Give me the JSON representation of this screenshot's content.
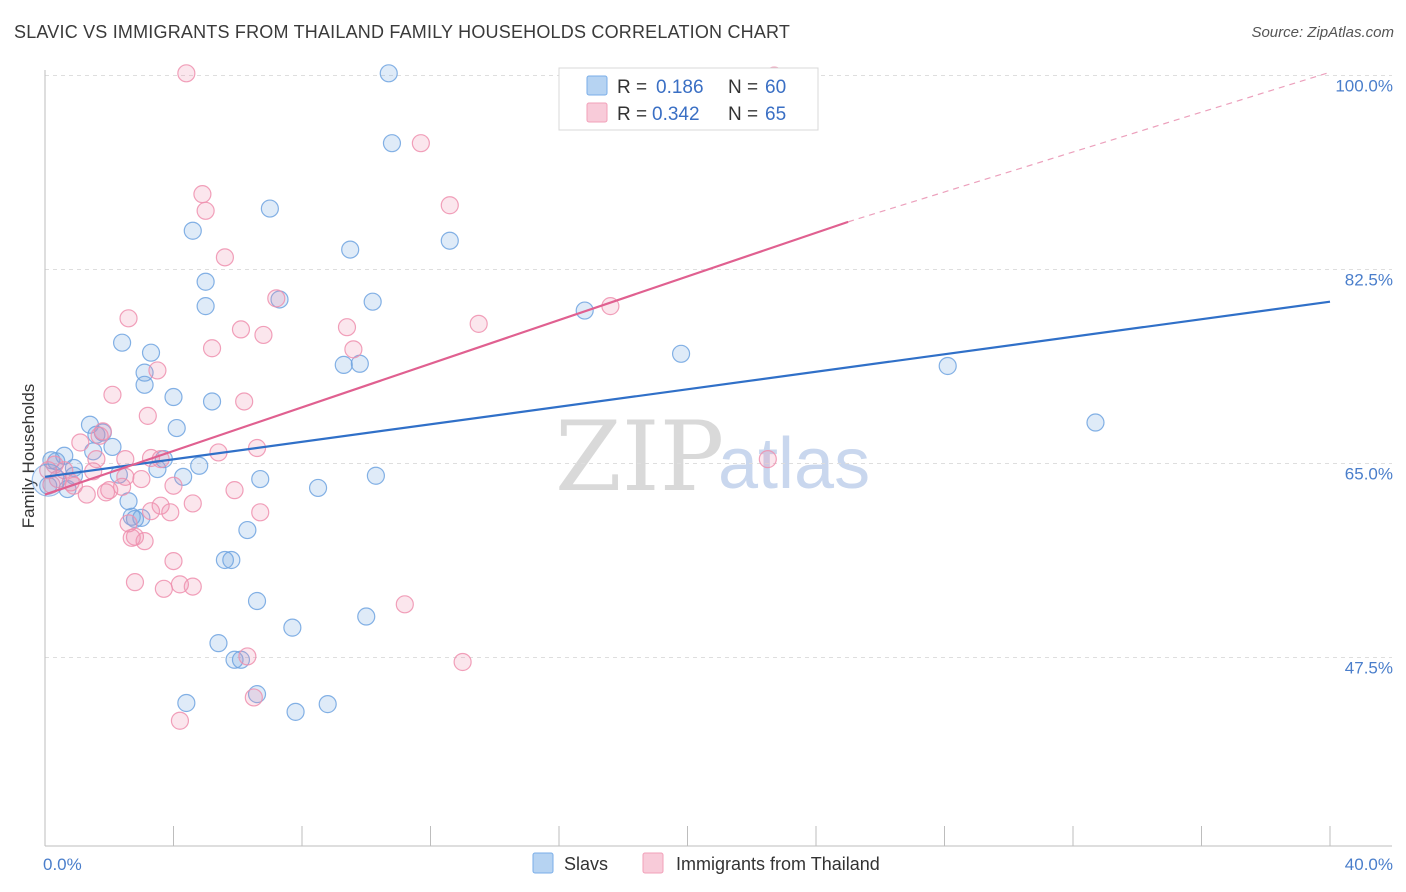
{
  "header": {
    "title": "SLAVIC VS IMMIGRANTS FROM THAILAND FAMILY HOUSEHOLDS CORRELATION CHART",
    "source": "Source: ZipAtlas.com"
  },
  "watermark": {
    "zip": "ZIP",
    "atlas": "atlas"
  },
  "legend": {
    "rows": [
      {
        "r_label": "R =",
        "r_value": "0.186",
        "n_label": "N =",
        "n_value": "60",
        "color": "#7aaee8"
      },
      {
        "r_label": "R =",
        "r_value": "0.342",
        "n_label": "N =",
        "n_value": "65",
        "color": "#f2a0b9"
      }
    ]
  },
  "colors": {
    "slavs": "#6fa3e0",
    "thailand": "#ef8fae",
    "slavs_line": "#3070c8",
    "thailand_line": "#e06090",
    "tick_label": "#4a7ecb",
    "grid": "#dedede"
  },
  "chart_data": {
    "type": "scatter",
    "title": "SLAVIC VS IMMIGRANTS FROM THAILAND FAMILY HOUSEHOLDS CORRELATION CHART",
    "xlabel": "",
    "ylabel": "Family Households",
    "xlim": [
      0,
      40
    ],
    "ylim": [
      30.5,
      100.5
    ],
    "x_ticks_labeled": [
      {
        "value": 0,
        "label": "0.0%"
      },
      {
        "value": 40,
        "label": "40.0%"
      }
    ],
    "y_ticks": [
      {
        "value": 47.5,
        "label": "47.5%"
      },
      {
        "value": 65.0,
        "label": "65.0%"
      },
      {
        "value": 82.5,
        "label": "82.5%"
      },
      {
        "value": 100.0,
        "label": "100.0%"
      }
    ],
    "grid": true,
    "legend_position": "top-center",
    "series": [
      {
        "name": "Slavs",
        "r": 0.186,
        "n": 60,
        "trend": {
          "x0": 0,
          "y0": 63.8,
          "x1": 40,
          "y1": 79.6,
          "dashed_from": null
        },
        "points": [
          [
            0.1,
            63.0
          ],
          [
            0.2,
            65.3
          ],
          [
            0.35,
            65.2
          ],
          [
            0.6,
            65.7
          ],
          [
            0.9,
            64.6
          ],
          [
            1.4,
            68.5
          ],
          [
            1.5,
            66.1
          ],
          [
            1.6,
            67.6
          ],
          [
            2.1,
            66.5
          ],
          [
            2.3,
            64.0
          ],
          [
            2.4,
            75.9
          ],
          [
            2.6,
            61.6
          ],
          [
            2.7,
            60.2
          ],
          [
            2.8,
            60.0
          ],
          [
            3.0,
            60.1
          ],
          [
            3.1,
            73.2
          ],
          [
            3.1,
            72.1
          ],
          [
            3.3,
            75.0
          ],
          [
            3.5,
            64.5
          ],
          [
            3.7,
            65.4
          ],
          [
            4.0,
            71.0
          ],
          [
            4.1,
            68.2
          ],
          [
            4.3,
            63.8
          ],
          [
            4.6,
            86.0
          ],
          [
            4.8,
            64.8
          ],
          [
            5.0,
            81.4
          ],
          [
            5.0,
            79.2
          ],
          [
            5.2,
            70.6
          ],
          [
            5.4,
            48.8
          ],
          [
            5.6,
            56.3
          ],
          [
            5.8,
            56.3
          ],
          [
            5.9,
            47.3
          ],
          [
            6.1,
            47.3
          ],
          [
            6.3,
            59.0
          ],
          [
            6.6,
            52.6
          ],
          [
            6.7,
            63.6
          ],
          [
            7.0,
            88.0
          ],
          [
            7.3,
            79.8
          ],
          [
            7.7,
            50.2
          ],
          [
            7.8,
            42.6
          ],
          [
            8.5,
            62.8
          ],
          [
            8.8,
            43.3
          ],
          [
            9.3,
            73.9
          ],
          [
            9.5,
            84.3
          ],
          [
            9.8,
            74.0
          ],
          [
            10.0,
            51.2
          ],
          [
            10.2,
            79.6
          ],
          [
            10.3,
            63.9
          ],
          [
            10.7,
            100.2
          ],
          [
            10.8,
            93.9
          ],
          [
            12.6,
            85.1
          ],
          [
            16.8,
            78.8
          ],
          [
            19.8,
            74.9
          ],
          [
            28.1,
            73.8
          ],
          [
            32.7,
            68.7
          ],
          [
            4.4,
            43.4
          ],
          [
            6.6,
            44.2
          ],
          [
            0.9,
            63.9
          ],
          [
            0.7,
            62.7
          ],
          [
            1.8,
            67.8
          ]
        ]
      },
      {
        "name": "Immigrants from Thailand",
        "r": 0.342,
        "n": 65,
        "trend": {
          "x0": 0,
          "y0": 62.2,
          "x1": 25.0,
          "y1": 86.8,
          "dashed_to": {
            "x": 40,
            "y": 100.3
          }
        },
        "points": [
          [
            0.1,
            64.4
          ],
          [
            0.2,
            63.1
          ],
          [
            0.3,
            64.9
          ],
          [
            0.4,
            63.6
          ],
          [
            0.6,
            64.4
          ],
          [
            0.8,
            63.3
          ],
          [
            0.9,
            63.0
          ],
          [
            1.1,
            66.9
          ],
          [
            1.3,
            62.2
          ],
          [
            1.5,
            64.3
          ],
          [
            1.6,
            65.4
          ],
          [
            1.7,
            67.5
          ],
          [
            1.8,
            67.9
          ],
          [
            2.0,
            62.6
          ],
          [
            2.1,
            71.2
          ],
          [
            2.4,
            62.9
          ],
          [
            2.5,
            63.8
          ],
          [
            2.5,
            65.4
          ],
          [
            2.6,
            78.1
          ],
          [
            2.6,
            59.6
          ],
          [
            2.7,
            58.3
          ],
          [
            2.8,
            54.3
          ],
          [
            2.8,
            58.4
          ],
          [
            3.0,
            63.6
          ],
          [
            3.1,
            58.0
          ],
          [
            3.2,
            69.3
          ],
          [
            3.3,
            60.7
          ],
          [
            3.3,
            65.5
          ],
          [
            3.5,
            73.4
          ],
          [
            3.6,
            61.2
          ],
          [
            3.6,
            65.4
          ],
          [
            3.7,
            53.7
          ],
          [
            3.9,
            60.6
          ],
          [
            4.0,
            63.0
          ],
          [
            4.0,
            56.2
          ],
          [
            4.2,
            54.1
          ],
          [
            4.2,
            41.8
          ],
          [
            4.4,
            100.2
          ],
          [
            4.6,
            61.4
          ],
          [
            4.6,
            53.9
          ],
          [
            4.9,
            89.3
          ],
          [
            5.0,
            87.8
          ],
          [
            5.2,
            75.4
          ],
          [
            5.4,
            66.0
          ],
          [
            5.6,
            83.6
          ],
          [
            5.9,
            62.6
          ],
          [
            6.1,
            77.1
          ],
          [
            6.2,
            70.6
          ],
          [
            6.3,
            47.6
          ],
          [
            6.5,
            43.9
          ],
          [
            6.6,
            66.4
          ],
          [
            6.7,
            60.6
          ],
          [
            6.8,
            76.6
          ],
          [
            7.2,
            79.9
          ],
          [
            9.4,
            77.3
          ],
          [
            9.6,
            75.3
          ],
          [
            11.2,
            52.3
          ],
          [
            11.7,
            93.9
          ],
          [
            12.6,
            88.3
          ],
          [
            13.0,
            47.1
          ],
          [
            13.5,
            77.6
          ],
          [
            17.6,
            79.2
          ],
          [
            22.5,
            65.4
          ],
          [
            22.7,
            100.0
          ],
          [
            1.9,
            62.4
          ]
        ]
      }
    ]
  },
  "bottom_legend": {
    "items": [
      {
        "label": "Slavs",
        "color": "#7aaee8"
      },
      {
        "label": "Immigrants from Thailand",
        "color": "#f2a0b9"
      }
    ]
  }
}
